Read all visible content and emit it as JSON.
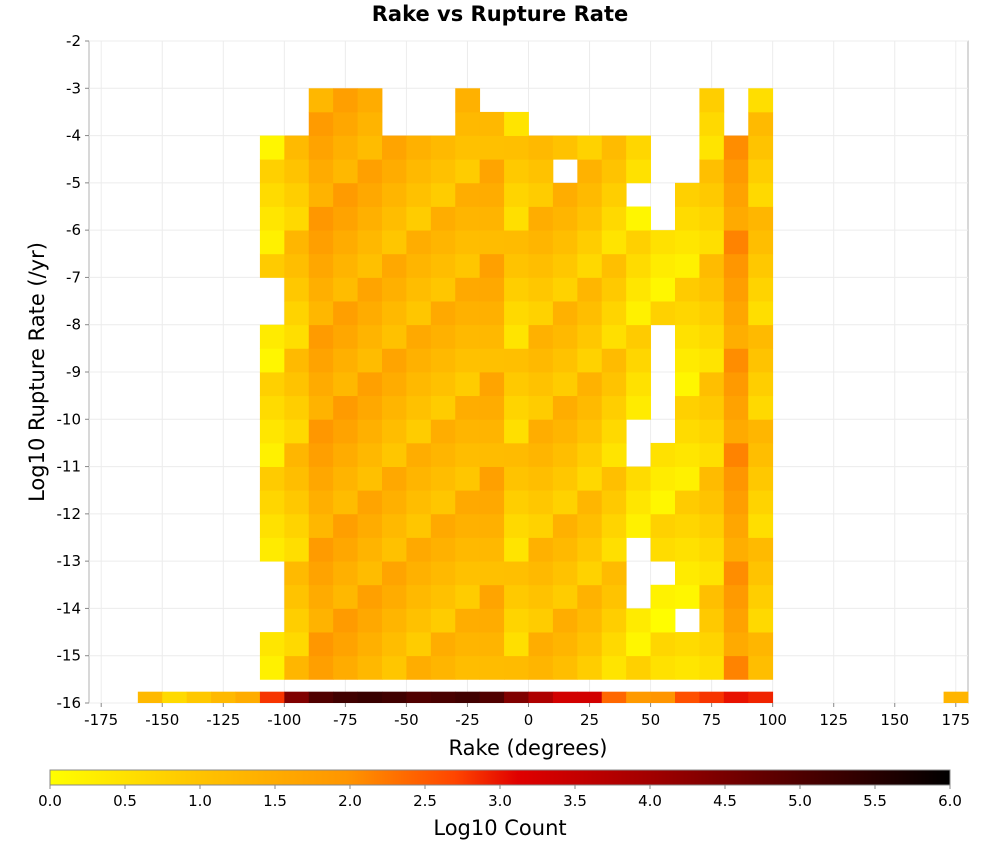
{
  "chart_data": {
    "type": "heatmap",
    "title": "Rake vs Rupture Rate",
    "xlabel": "Rake (degrees)",
    "ylabel": "Log10 Rupture Rate (/yr)",
    "xlim": [
      -180,
      180
    ],
    "ylim": [
      -16,
      -2
    ],
    "x_ticks": [
      "-175",
      "-150",
      "-125",
      "-100",
      "-75",
      "-50",
      "-25",
      "0",
      "25",
      "50",
      "75",
      "100",
      "125",
      "150",
      "175"
    ],
    "y_ticks": [
      "-2",
      "-3",
      "-4",
      "-5",
      "-6",
      "-7",
      "-8",
      "-9",
      "-10",
      "-11",
      "-12",
      "-13",
      "-14",
      "-15",
      "-16"
    ],
    "grid": true,
    "bin_width_x": 10,
    "bin_height_y": 0.5,
    "colorbar": {
      "label": "Log10 Count",
      "range": [
        0,
        6
      ],
      "ticks": [
        "0.0",
        "0.5",
        "1.0",
        "1.5",
        "2.0",
        "2.5",
        "3.0",
        "3.5",
        "4.0",
        "4.5",
        "5.0",
        "5.5",
        "6.0"
      ],
      "colors": [
        "#ffff00",
        "#ffa500",
        "#ff6a00",
        "#e00000",
        "#990000",
        "#000000"
      ]
    },
    "bottom_row": {
      "y": -16,
      "x": [
        -155,
        -145,
        -135,
        -125,
        -115,
        -105,
        -95,
        -85,
        -75,
        -65,
        -55,
        -45,
        -35,
        -25,
        -15,
        -5,
        5,
        15,
        25,
        35,
        45,
        55,
        65,
        75,
        85,
        95,
        175
      ],
      "values": [
        1.2,
        0.6,
        0.9,
        1.2,
        1.5,
        2.8,
        4.4,
        5.0,
        5.2,
        5.3,
        5.2,
        5.0,
        5.1,
        5.2,
        5.0,
        4.4,
        3.8,
        3.3,
        3.3,
        2.4,
        1.9,
        2.0,
        2.6,
        2.8,
        3.0,
        2.9,
        1.3
      ]
    },
    "columns": [
      {
        "x": -105,
        "ranges": [
          [
            -15.5,
            -15.0
          ],
          [
            -13.0,
            -12.0
          ],
          [
            -12.0,
            -11.5
          ],
          [
            -11.0,
            -10.5
          ],
          [
            -10.0,
            -9.5
          ],
          [
            -9.0,
            -8.5
          ],
          [
            -7.0,
            -6.5
          ],
          [
            -6.0,
            -5.5
          ],
          [
            -5.0,
            -4.5
          ]
        ],
        "value": 0.5
      },
      {
        "x": -95,
        "ranges": [
          [
            -15.5,
            -4.5
          ]
        ],
        "value": 0.9
      },
      {
        "x": -85,
        "ranges": [
          [
            -15.5,
            -3.5
          ]
        ],
        "value": 1.6
      },
      {
        "x": -75,
        "ranges": [
          [
            -15.5,
            -3.5
          ]
        ],
        "value": 1.5
      },
      {
        "x": -65,
        "ranges": [
          [
            -15.5,
            -3.5
          ]
        ],
        "value": 1.4
      },
      {
        "x": -55,
        "ranges": [
          [
            -15.5,
            -4.5
          ]
        ],
        "value": 1.3
      },
      {
        "x": -45,
        "ranges": [
          [
            -15.5,
            -4.5
          ]
        ],
        "value": 1.2
      },
      {
        "x": -35,
        "ranges": [
          [
            -15.5,
            -4.5
          ]
        ],
        "value": 1.2
      },
      {
        "x": -25,
        "ranges": [
          [
            -15.5,
            -3.5
          ]
        ],
        "value": 1.2
      },
      {
        "x": -15,
        "ranges": [
          [
            -15.5,
            -4.0
          ]
        ],
        "value": 1.4
      },
      {
        "x": -5,
        "ranges": [
          [
            -15.5,
            -7.0
          ],
          [
            -6.5,
            -4.0
          ]
        ],
        "value": 0.8
      },
      {
        "x": 5,
        "ranges": [
          [
            -15.5,
            -4.5
          ]
        ],
        "value": 1.1
      },
      {
        "x": 15,
        "ranges": [
          [
            -15.5,
            -5.5
          ],
          [
            -4.5,
            -4.5
          ]
        ],
        "value": 1.1
      },
      {
        "x": 25,
        "ranges": [
          [
            -15.5,
            -4.5
          ]
        ],
        "value": 1.0
      },
      {
        "x": 35,
        "ranges": [
          [
            -15.5,
            -14.0
          ],
          [
            -13.5,
            -10.5
          ],
          [
            -10.0,
            -5.5
          ],
          [
            -5.0,
            -4.5
          ]
        ],
        "value": 0.8
      },
      {
        "x": 45,
        "ranges": [
          [
            -15.5,
            -14.5
          ],
          [
            -12.5,
            -11.5
          ],
          [
            -10.0,
            -6.0
          ],
          [
            -5.0,
            -4.5
          ]
        ],
        "value": 0.5
      },
      {
        "x": 55,
        "ranges": [
          [
            -15.5,
            -15.0
          ],
          [
            -14.5,
            -14.0
          ],
          [
            -13.0,
            -12.0
          ],
          [
            -11.5,
            -11.0
          ],
          [
            -8.0,
            -6.5
          ]
        ],
        "value": 0.4
      },
      {
        "x": 65,
        "ranges": [
          [
            -15.5,
            -15.0
          ],
          [
            -14.0,
            -12.0
          ],
          [
            -11.5,
            -10.5
          ],
          [
            -10.0,
            -8.5
          ],
          [
            -8.0,
            -5.5
          ]
        ],
        "value": 0.5
      },
      {
        "x": 75,
        "ranges": [
          [
            -15.5,
            -5.0
          ],
          [
            -4.5,
            -3.5
          ]
        ],
        "value": 0.8
      },
      {
        "x": 85,
        "ranges": [
          [
            -15.5,
            -4.5
          ]
        ],
        "value": 1.8
      },
      {
        "x": 95,
        "ranges": [
          [
            -15.5,
            -3.5
          ]
        ],
        "value": 0.9
      }
    ]
  }
}
